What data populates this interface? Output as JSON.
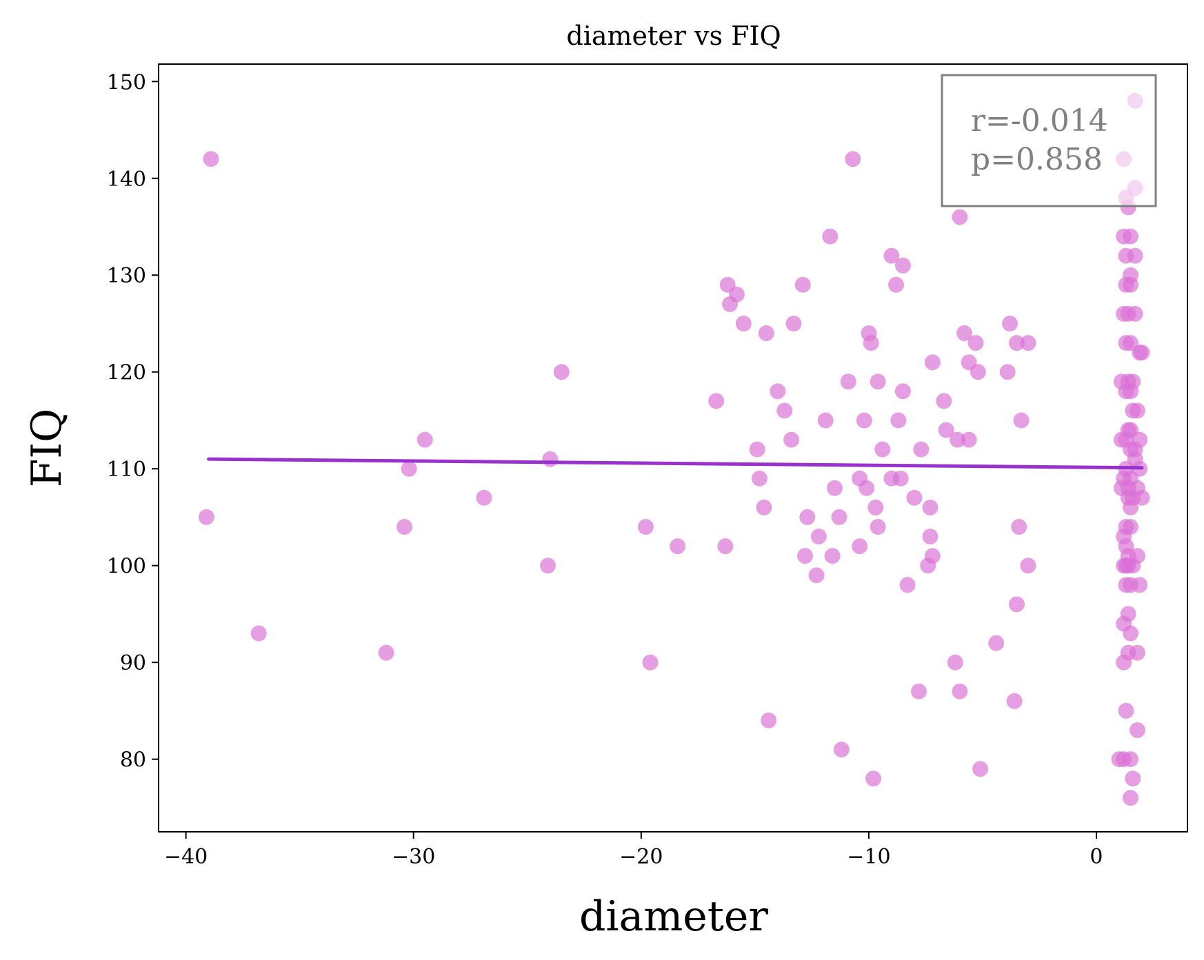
{
  "chart_data": {
    "type": "scatter",
    "title": "diameter vs FIQ",
    "xlabel": "diameter",
    "ylabel": "FIQ",
    "xlim": [
      -41.2,
      4.0
    ],
    "ylim": [
      72.5,
      151.8
    ],
    "xticks": [
      -40,
      -30,
      -20,
      -10,
      0
    ],
    "xtick_labels": [
      "−40",
      "−30",
      "−20",
      "−10",
      "0"
    ],
    "yticks": [
      80,
      90,
      100,
      110,
      120,
      130,
      140,
      150
    ],
    "ytick_labels": [
      "80",
      "90",
      "100",
      "110",
      "120",
      "130",
      "140",
      "150"
    ],
    "grid": false,
    "point_color": "#DA70D6",
    "line_color": "#9932CC",
    "stats": {
      "r": "r=-0.014",
      "p": "p=0.858"
    },
    "stats_placement": "top-right",
    "fit_line": {
      "x": [
        -39.0,
        2.0
      ],
      "y": [
        111.0,
        110.1
      ]
    },
    "points": [
      [
        -38.9,
        142
      ],
      [
        -39.1,
        105
      ],
      [
        -36.8,
        93
      ],
      [
        -31.2,
        91
      ],
      [
        -30.4,
        104
      ],
      [
        -30.2,
        110
      ],
      [
        -29.5,
        113
      ],
      [
        -26.9,
        107
      ],
      [
        -24.1,
        100
      ],
      [
        -24.0,
        111
      ],
      [
        -23.5,
        120
      ],
      [
        -19.8,
        104
      ],
      [
        -19.6,
        90
      ],
      [
        -18.4,
        102
      ],
      [
        -16.7,
        117
      ],
      [
        -16.3,
        102
      ],
      [
        -16.2,
        129
      ],
      [
        -16.1,
        127
      ],
      [
        -15.8,
        128
      ],
      [
        -15.5,
        125
      ],
      [
        -14.9,
        112
      ],
      [
        -14.8,
        109
      ],
      [
        -14.6,
        106
      ],
      [
        -14.5,
        124
      ],
      [
        -14.4,
        84
      ],
      [
        -14.0,
        118
      ],
      [
        -13.7,
        116
      ],
      [
        -13.4,
        113
      ],
      [
        -13.3,
        125
      ],
      [
        -12.9,
        129
      ],
      [
        -12.8,
        101
      ],
      [
        -12.7,
        105
      ],
      [
        -12.3,
        99
      ],
      [
        -12.2,
        103
      ],
      [
        -11.9,
        115
      ],
      [
        -11.7,
        134
      ],
      [
        -11.6,
        101
      ],
      [
        -11.5,
        108
      ],
      [
        -11.3,
        105
      ],
      [
        -11.2,
        81
      ],
      [
        -10.9,
        119
      ],
      [
        -10.7,
        142
      ],
      [
        -10.4,
        102
      ],
      [
        -10.4,
        109
      ],
      [
        -10.2,
        115
      ],
      [
        -10.1,
        108
      ],
      [
        -10.0,
        124
      ],
      [
        -9.9,
        123
      ],
      [
        -9.8,
        78
      ],
      [
        -9.7,
        106
      ],
      [
        -9.6,
        104
      ],
      [
        -9.6,
        119
      ],
      [
        -9.4,
        112
      ],
      [
        -9.0,
        132
      ],
      [
        -9.0,
        109
      ],
      [
        -8.8,
        129
      ],
      [
        -8.7,
        115
      ],
      [
        -8.6,
        109
      ],
      [
        -8.5,
        131
      ],
      [
        -8.5,
        118
      ],
      [
        -8.3,
        98
      ],
      [
        -8.0,
        107
      ],
      [
        -7.8,
        87
      ],
      [
        -7.7,
        112
      ],
      [
        -7.4,
        100
      ],
      [
        -7.3,
        106
      ],
      [
        -7.3,
        103
      ],
      [
        -7.2,
        101
      ],
      [
        -7.2,
        121
      ],
      [
        -6.7,
        117
      ],
      [
        -6.6,
        114
      ],
      [
        -6.2,
        90
      ],
      [
        -6.1,
        113
      ],
      [
        -6.0,
        87
      ],
      [
        -6.0,
        136
      ],
      [
        -5.8,
        124
      ],
      [
        -5.6,
        121
      ],
      [
        -5.6,
        113
      ],
      [
        -5.3,
        123
      ],
      [
        -5.2,
        120
      ],
      [
        -5.1,
        79
      ],
      [
        -4.4,
        92
      ],
      [
        -3.9,
        120
      ],
      [
        -3.8,
        125
      ],
      [
        -3.6,
        86
      ],
      [
        -3.5,
        123
      ],
      [
        -3.5,
        96
      ],
      [
        -3.4,
        104
      ],
      [
        -3.3,
        115
      ],
      [
        -3.0,
        123
      ],
      [
        -3.0,
        100
      ],
      [
        1.0,
        80
      ],
      [
        1.1,
        113
      ],
      [
        1.1,
        119
      ],
      [
        1.1,
        108
      ],
      [
        1.2,
        103
      ],
      [
        1.2,
        94
      ],
      [
        1.2,
        90
      ],
      [
        1.2,
        100
      ],
      [
        1.2,
        109
      ],
      [
        1.2,
        126
      ],
      [
        1.2,
        134
      ],
      [
        1.2,
        80
      ],
      [
        1.2,
        142
      ],
      [
        1.3,
        113
      ],
      [
        1.3,
        123
      ],
      [
        1.3,
        100
      ],
      [
        1.3,
        85
      ],
      [
        1.3,
        98
      ],
      [
        1.3,
        104
      ],
      [
        1.3,
        102
      ],
      [
        1.3,
        118
      ],
      [
        1.3,
        132
      ],
      [
        1.3,
        129
      ],
      [
        1.3,
        110
      ],
      [
        1.3,
        138
      ],
      [
        1.4,
        114
      ],
      [
        1.4,
        119
      ],
      [
        1.4,
        91
      ],
      [
        1.4,
        101
      ],
      [
        1.4,
        107
      ],
      [
        1.4,
        95
      ],
      [
        1.4,
        100
      ],
      [
        1.4,
        137
      ],
      [
        1.4,
        108
      ],
      [
        1.4,
        126
      ],
      [
        1.5,
        114
      ],
      [
        1.5,
        104
      ],
      [
        1.5,
        118
      ],
      [
        1.5,
        106
      ],
      [
        1.5,
        98
      ],
      [
        1.5,
        123
      ],
      [
        1.5,
        112
      ],
      [
        1.5,
        129
      ],
      [
        1.5,
        134
      ],
      [
        1.5,
        93
      ],
      [
        1.5,
        80
      ],
      [
        1.5,
        76
      ],
      [
        1.5,
        109
      ],
      [
        1.5,
        130
      ],
      [
        1.6,
        107
      ],
      [
        1.6,
        116
      ],
      [
        1.6,
        78
      ],
      [
        1.6,
        100
      ],
      [
        1.6,
        119
      ],
      [
        1.7,
        148
      ],
      [
        1.7,
        126
      ],
      [
        1.7,
        132
      ],
      [
        1.7,
        139
      ],
      [
        1.7,
        112
      ],
      [
        1.7,
        111
      ],
      [
        1.8,
        116
      ],
      [
        1.8,
        108
      ],
      [
        1.8,
        91
      ],
      [
        1.8,
        101
      ],
      [
        1.8,
        83
      ],
      [
        1.9,
        113
      ],
      [
        1.9,
        122
      ],
      [
        1.9,
        98
      ],
      [
        1.9,
        110
      ],
      [
        2.0,
        107
      ],
      [
        2.0,
        122
      ]
    ]
  }
}
